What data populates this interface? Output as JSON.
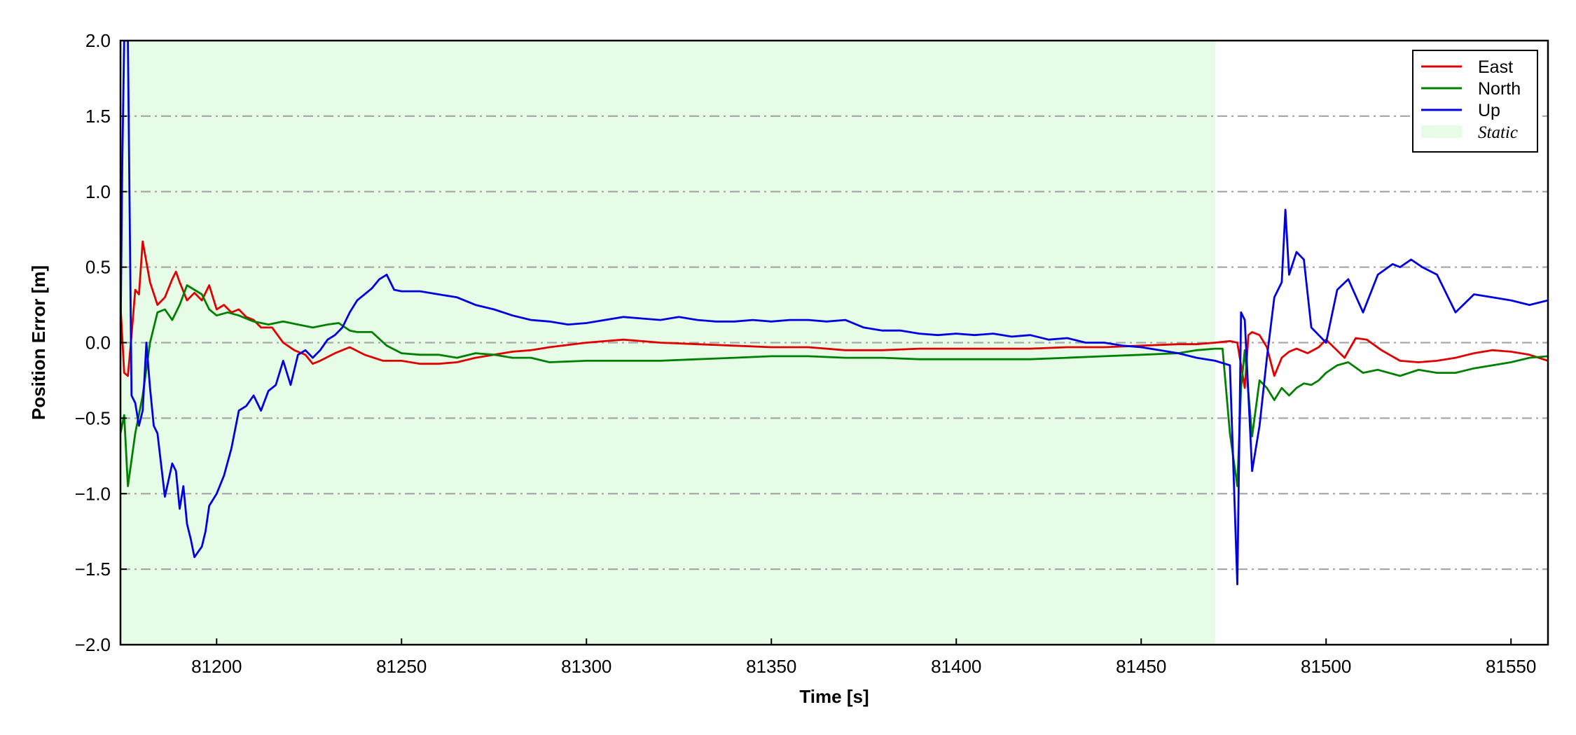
{
  "chart_data": {
    "type": "line",
    "xlabel": "Time [s]",
    "ylabel": "Position Error [m]",
    "xlim": [
      81174,
      81560
    ],
    "ylim": [
      -2.0,
      2.0
    ],
    "x_ticks": [
      81200,
      81250,
      81300,
      81350,
      81400,
      81450,
      81500,
      81550
    ],
    "x_tick_labels": [
      "81200",
      "81250",
      "81300",
      "81350",
      "81400",
      "81450",
      "81500",
      "81550"
    ],
    "y_ticks": [
      -2.0,
      -1.5,
      -1.0,
      -0.5,
      0.0,
      0.5,
      1.0,
      1.5,
      2.0
    ],
    "y_tick_labels": [
      "−2.0",
      "−1.5",
      "−1.0",
      "−0.5",
      "0.0",
      "0.5",
      "1.0",
      "1.5",
      "2.0"
    ],
    "grid": "horizontal dash-dot",
    "legend_position": "top-right",
    "static_region": {
      "label": "Static",
      "x_start": 81174,
      "x_end": 81470,
      "color": "#e6fce6"
    },
    "series": [
      {
        "name": "East",
        "color": "#e00000",
        "x": [
          81174,
          81175,
          81176,
          81177,
          81178,
          81179,
          81180,
          81182,
          81184,
          81186,
          81188,
          81189,
          81190,
          81192,
          81194,
          81196,
          81198,
          81200,
          81202,
          81204,
          81206,
          81208,
          81210,
          81212,
          81215,
          81218,
          81221,
          81224,
          81226,
          81228,
          81232,
          81236,
          81240,
          81245,
          81250,
          81255,
          81260,
          81265,
          81270,
          81275,
          81280,
          81285,
          81290,
          81300,
          81310,
          81320,
          81330,
          81340,
          81350,
          81360,
          81370,
          81380,
          81390,
          81400,
          81410,
          81420,
          81430,
          81440,
          81450,
          81460,
          81465,
          81470,
          81474,
          81476,
          81478,
          81479,
          81480,
          81482,
          81484,
          81486,
          81488,
          81490,
          81492,
          81495,
          81498,
          81500,
          81505,
          81508,
          81511,
          81515,
          81520,
          81525,
          81530,
          81535,
          81540,
          81545,
          81550,
          81555,
          81560
        ],
        "y": [
          0.25,
          -0.2,
          -0.22,
          0.05,
          0.35,
          0.32,
          0.67,
          0.4,
          0.25,
          0.3,
          0.42,
          0.47,
          0.4,
          0.28,
          0.33,
          0.28,
          0.38,
          0.22,
          0.25,
          0.2,
          0.22,
          0.17,
          0.15,
          0.1,
          0.1,
          0.0,
          -0.05,
          -0.08,
          -0.14,
          -0.12,
          -0.07,
          -0.03,
          -0.08,
          -0.12,
          -0.12,
          -0.14,
          -0.14,
          -0.13,
          -0.1,
          -0.08,
          -0.06,
          -0.05,
          -0.03,
          0.0,
          0.02,
          0.0,
          -0.01,
          -0.02,
          -0.03,
          -0.03,
          -0.05,
          -0.05,
          -0.04,
          -0.04,
          -0.04,
          -0.04,
          -0.03,
          -0.03,
          -0.02,
          -0.01,
          -0.01,
          0.0,
          0.01,
          0.0,
          -0.3,
          0.05,
          0.07,
          0.05,
          -0.03,
          -0.22,
          -0.1,
          -0.06,
          -0.04,
          -0.07,
          -0.03,
          0.02,
          -0.1,
          0.03,
          0.02,
          -0.05,
          -0.12,
          -0.13,
          -0.12,
          -0.1,
          -0.07,
          -0.05,
          -0.06,
          -0.08,
          -0.12
        ]
      },
      {
        "name": "North",
        "color": "#008000",
        "x": [
          81174,
          81175,
          81176,
          81178,
          81180,
          81182,
          81184,
          81186,
          81188,
          81189,
          81190,
          81192,
          81194,
          81196,
          81198,
          81200,
          81203,
          81206,
          81210,
          81214,
          81218,
          81222,
          81226,
          81230,
          81233,
          81236,
          81238,
          81242,
          81246,
          81250,
          81255,
          81260,
          81265,
          81270,
          81275,
          81280,
          81285,
          81290,
          81300,
          81310,
          81320,
          81330,
          81340,
          81350,
          81360,
          81370,
          81380,
          81390,
          81400,
          81410,
          81420,
          81430,
          81440,
          81450,
          81460,
          81465,
          81470,
          81472,
          81474,
          81476,
          81477,
          81478,
          81480,
          81482,
          81484,
          81486,
          81488,
          81490,
          81492,
          81494,
          81496,
          81498,
          81500,
          81503,
          81506,
          81510,
          81514,
          81520,
          81525,
          81530,
          81535,
          81540,
          81545,
          81550,
          81555,
          81560
        ],
        "y": [
          -0.6,
          -0.48,
          -0.95,
          -0.6,
          -0.35,
          0.0,
          0.2,
          0.22,
          0.15,
          0.2,
          0.25,
          0.38,
          0.35,
          0.32,
          0.22,
          0.18,
          0.2,
          0.18,
          0.14,
          0.12,
          0.14,
          0.12,
          0.1,
          0.12,
          0.13,
          0.08,
          0.07,
          0.07,
          -0.02,
          -0.07,
          -0.08,
          -0.08,
          -0.1,
          -0.07,
          -0.08,
          -0.1,
          -0.1,
          -0.13,
          -0.12,
          -0.12,
          -0.12,
          -0.11,
          -0.1,
          -0.09,
          -0.09,
          -0.1,
          -0.1,
          -0.11,
          -0.11,
          -0.11,
          -0.11,
          -0.1,
          -0.09,
          -0.08,
          -0.07,
          -0.05,
          -0.04,
          -0.04,
          -0.6,
          -0.95,
          -0.3,
          -0.05,
          -0.62,
          -0.25,
          -0.3,
          -0.38,
          -0.3,
          -0.35,
          -0.3,
          -0.27,
          -0.28,
          -0.25,
          -0.2,
          -0.15,
          -0.13,
          -0.2,
          -0.18,
          -0.22,
          -0.18,
          -0.2,
          -0.2,
          -0.17,
          -0.15,
          -0.13,
          -0.1,
          -0.09
        ]
      },
      {
        "name": "Up",
        "color": "#0000e0",
        "x": [
          81174,
          81174.5,
          81175,
          81176,
          81177,
          81178,
          81179,
          81180,
          81181,
          81182,
          81183,
          81184,
          81186,
          81188,
          81189,
          81190,
          81191,
          81192,
          81193,
          81194,
          81196,
          81197,
          81198,
          81200,
          81202,
          81204,
          81206,
          81208,
          81210,
          81212,
          81214,
          81216,
          81218,
          81220,
          81222,
          81224,
          81226,
          81228,
          81230,
          81232,
          81234,
          81236,
          81238,
          81240,
          81242,
          81244,
          81246,
          81248,
          81250,
          81255,
          81260,
          81265,
          81270,
          81275,
          81280,
          81285,
          81290,
          81295,
          81300,
          81305,
          81310,
          81315,
          81320,
          81325,
          81330,
          81335,
          81340,
          81345,
          81350,
          81355,
          81360,
          81365,
          81370,
          81375,
          81380,
          81385,
          81390,
          81395,
          81400,
          81405,
          81410,
          81415,
          81420,
          81425,
          81430,
          81435,
          81440,
          81445,
          81450,
          81455,
          81460,
          81465,
          81470,
          81474,
          81476,
          81477,
          81478,
          81480,
          81482,
          81484,
          81486,
          81488,
          81489,
          81490,
          81492,
          81494,
          81496,
          81498,
          81500,
          81503,
          81506,
          81510,
          81514,
          81518,
          81520,
          81523,
          81526,
          81530,
          81535,
          81540,
          81545,
          81550,
          81555,
          81560
        ],
        "y": [
          0.0,
          1.2,
          2.0,
          2.0,
          -0.35,
          -0.4,
          -0.55,
          -0.45,
          0.0,
          -0.3,
          -0.55,
          -0.6,
          -1.02,
          -0.8,
          -0.85,
          -1.1,
          -0.95,
          -1.2,
          -1.3,
          -1.42,
          -1.35,
          -1.25,
          -1.08,
          -1.0,
          -0.88,
          -0.7,
          -0.45,
          -0.42,
          -0.35,
          -0.45,
          -0.32,
          -0.28,
          -0.12,
          -0.28,
          -0.08,
          -0.05,
          -0.1,
          -0.05,
          0.02,
          0.05,
          0.1,
          0.2,
          0.28,
          0.32,
          0.36,
          0.42,
          0.45,
          0.35,
          0.34,
          0.34,
          0.32,
          0.3,
          0.25,
          0.22,
          0.18,
          0.15,
          0.14,
          0.12,
          0.13,
          0.15,
          0.17,
          0.16,
          0.15,
          0.17,
          0.15,
          0.14,
          0.14,
          0.15,
          0.14,
          0.15,
          0.15,
          0.14,
          0.15,
          0.1,
          0.08,
          0.08,
          0.06,
          0.05,
          0.06,
          0.05,
          0.06,
          0.04,
          0.05,
          0.02,
          0.03,
          0.0,
          0.0,
          -0.02,
          -0.03,
          -0.05,
          -0.07,
          -0.1,
          -0.12,
          -0.15,
          -1.6,
          0.2,
          0.15,
          -0.85,
          -0.55,
          -0.1,
          0.3,
          0.4,
          0.88,
          0.45,
          0.6,
          0.55,
          0.1,
          0.05,
          0.0,
          0.35,
          0.42,
          0.2,
          0.45,
          0.52,
          0.5,
          0.55,
          0.5,
          0.45,
          0.2,
          0.32,
          0.3,
          0.28,
          0.25,
          0.28
        ]
      }
    ]
  }
}
